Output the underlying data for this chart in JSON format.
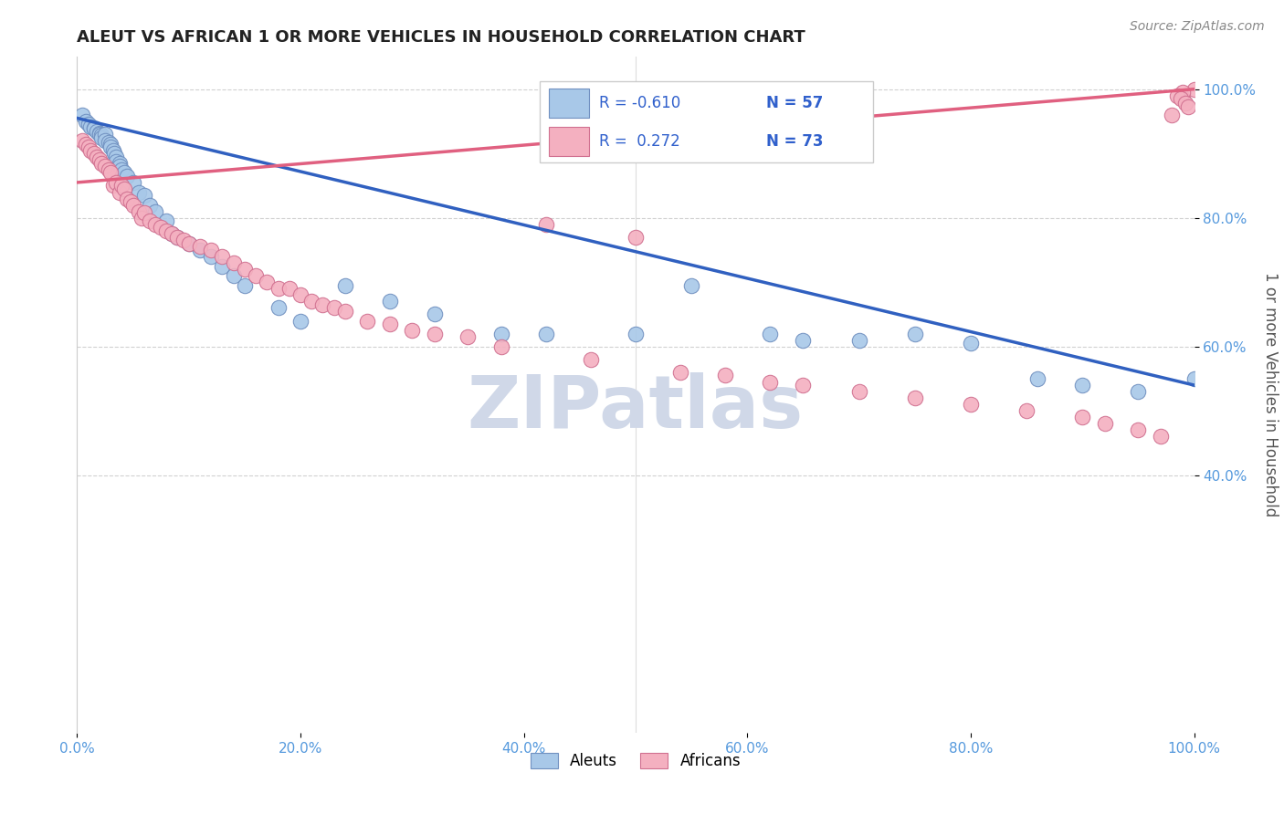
{
  "title": "ALEUT VS AFRICAN 1 OR MORE VEHICLES IN HOUSEHOLD CORRELATION CHART",
  "source": "Source: ZipAtlas.com",
  "ylabel": "1 or more Vehicles in Household",
  "xtick_labels": [
    "0.0%",
    "20.0%",
    "40.0%",
    "60.0%",
    "80.0%",
    "100.0%"
  ],
  "xtick_vals": [
    0.0,
    0.2,
    0.4,
    0.6,
    0.8,
    1.0
  ],
  "ytick_labels": [
    "40.0%",
    "60.0%",
    "80.0%",
    "100.0%"
  ],
  "ytick_vals": [
    0.4,
    0.6,
    0.8,
    1.0
  ],
  "aleut_color": "#A8C8E8",
  "african_color": "#F4B0C0",
  "aleut_edge_color": "#7090C0",
  "african_edge_color": "#D07090",
  "line_aleut_color": "#3060C0",
  "line_african_color": "#E06080",
  "watermark_color": "#D0D8E8",
  "legend_R_aleut": "R = -0.610",
  "legend_N_aleut": "N = 57",
  "legend_R_african": "R =  0.272",
  "legend_N_african": "N = 73",
  "aleut_x": [
    0.005,
    0.008,
    0.01,
    0.012,
    0.015,
    0.015,
    0.018,
    0.02,
    0.02,
    0.022,
    0.022,
    0.025,
    0.025,
    0.028,
    0.03,
    0.03,
    0.032,
    0.033,
    0.035,
    0.035,
    0.038,
    0.038,
    0.04,
    0.042,
    0.045,
    0.05,
    0.055,
    0.06,
    0.065,
    0.07,
    0.08,
    0.085,
    0.09,
    0.1,
    0.11,
    0.12,
    0.13,
    0.14,
    0.15,
    0.18,
    0.2,
    0.24,
    0.28,
    0.32,
    0.38,
    0.42,
    0.5,
    0.55,
    0.62,
    0.65,
    0.7,
    0.75,
    0.8,
    0.86,
    0.9,
    0.95,
    1.0
  ],
  "aleut_y": [
    0.96,
    0.95,
    0.945,
    0.942,
    0.94,
    0.938,
    0.935,
    0.932,
    0.93,
    0.928,
    0.925,
    0.93,
    0.92,
    0.918,
    0.915,
    0.91,
    0.905,
    0.9,
    0.895,
    0.888,
    0.885,
    0.88,
    0.875,
    0.87,
    0.865,
    0.855,
    0.84,
    0.835,
    0.82,
    0.81,
    0.795,
    0.775,
    0.77,
    0.76,
    0.75,
    0.74,
    0.725,
    0.71,
    0.695,
    0.66,
    0.64,
    0.695,
    0.67,
    0.65,
    0.62,
    0.62,
    0.62,
    0.695,
    0.62,
    0.61,
    0.61,
    0.62,
    0.605,
    0.55,
    0.54,
    0.53,
    0.55
  ],
  "african_x": [
    0.005,
    0.008,
    0.01,
    0.012,
    0.015,
    0.018,
    0.02,
    0.022,
    0.025,
    0.028,
    0.03,
    0.032,
    0.035,
    0.038,
    0.04,
    0.042,
    0.045,
    0.048,
    0.05,
    0.055,
    0.058,
    0.06,
    0.065,
    0.07,
    0.075,
    0.08,
    0.085,
    0.09,
    0.095,
    0.1,
    0.11,
    0.12,
    0.13,
    0.14,
    0.15,
    0.16,
    0.17,
    0.18,
    0.19,
    0.2,
    0.21,
    0.22,
    0.23,
    0.24,
    0.26,
    0.28,
    0.3,
    0.32,
    0.35,
    0.38,
    0.42,
    0.46,
    0.5,
    0.54,
    0.58,
    0.62,
    0.65,
    0.7,
    0.75,
    0.8,
    0.85,
    0.9,
    0.92,
    0.95,
    0.97,
    0.98,
    0.99,
    1.0,
    0.99,
    0.985,
    0.988,
    0.992,
    0.995
  ],
  "african_y": [
    0.92,
    0.915,
    0.91,
    0.905,
    0.9,
    0.895,
    0.89,
    0.885,
    0.88,
    0.875,
    0.87,
    0.85,
    0.855,
    0.84,
    0.85,
    0.845,
    0.83,
    0.825,
    0.82,
    0.81,
    0.8,
    0.808,
    0.795,
    0.79,
    0.785,
    0.78,
    0.775,
    0.77,
    0.765,
    0.76,
    0.755,
    0.75,
    0.74,
    0.73,
    0.72,
    0.71,
    0.7,
    0.69,
    0.69,
    0.68,
    0.67,
    0.665,
    0.66,
    0.655,
    0.64,
    0.635,
    0.625,
    0.62,
    0.615,
    0.6,
    0.79,
    0.58,
    0.77,
    0.56,
    0.555,
    0.545,
    0.54,
    0.53,
    0.52,
    0.51,
    0.5,
    0.49,
    0.48,
    0.47,
    0.46,
    0.96,
    0.985,
    1.0,
    0.995,
    0.99,
    0.985,
    0.978,
    0.972
  ],
  "aleut_line_x0": 0.0,
  "aleut_line_y0": 0.955,
  "aleut_line_x1": 1.0,
  "aleut_line_y1": 0.54,
  "african_line_x0": 0.0,
  "african_line_y0": 0.855,
  "african_line_x1": 1.0,
  "african_line_y1": 1.0,
  "xlim": [
    0.0,
    1.0
  ],
  "ylim_low": 0.0,
  "ylim_high": 1.05
}
